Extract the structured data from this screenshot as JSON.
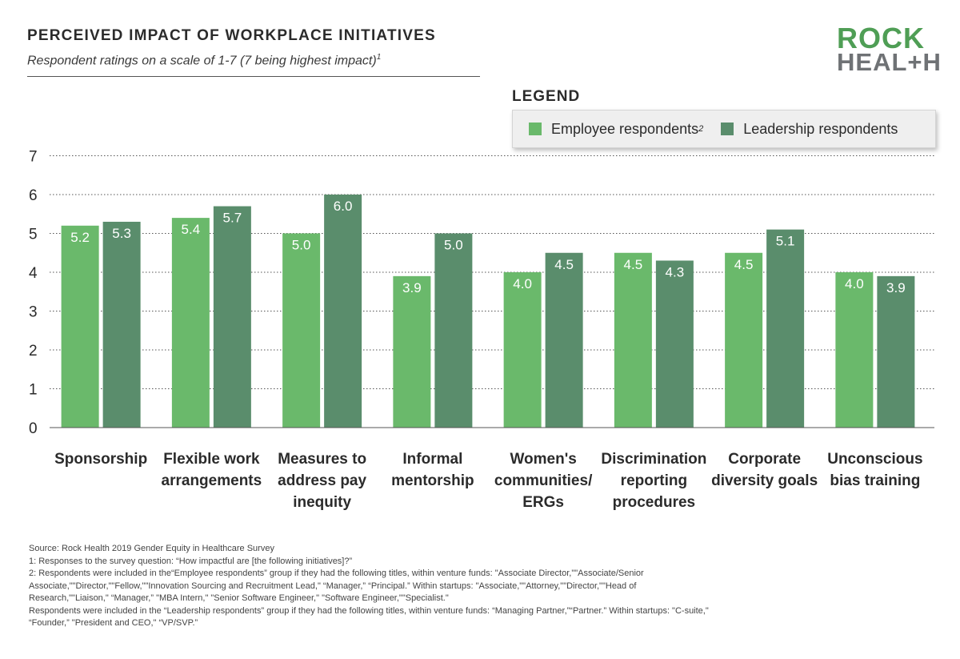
{
  "header": {
    "title": "PERCEIVED IMPACT OF WORKPLACE INITIATIVES",
    "subtitle": "Respondent ratings on a scale of 1-7 (7 being highest impact)",
    "subtitle_sup": "1"
  },
  "logo": {
    "line1": "ROCK",
    "line2": "HEAL+H"
  },
  "legend": {
    "title": "LEGEND",
    "employee_label": "Employee respondents",
    "employee_sup": "2",
    "leadership_label": "Leadership respondents"
  },
  "colors": {
    "employee": "#6ab96b",
    "leadership": "#5a8d6c"
  },
  "chart_data": {
    "type": "bar",
    "title": "PERCEIVED IMPACT OF WORKPLACE INITIATIVES",
    "subtitle": "Respondent ratings on a scale of 1-7 (7 being highest impact)",
    "categories": [
      [
        "Sponsorship"
      ],
      [
        "Flexible work",
        "arrangements"
      ],
      [
        "Measures to",
        "address pay",
        "inequity"
      ],
      [
        "Informal",
        "mentorship"
      ],
      [
        "Women's",
        "communities/",
        "ERGs"
      ],
      [
        "Discrimination",
        "reporting",
        "procedures"
      ],
      [
        "Corporate",
        "diversity goals"
      ],
      [
        "Unconscious",
        "bias training"
      ]
    ],
    "series": [
      {
        "name": "Employee respondents",
        "values": [
          5.2,
          5.4,
          5.0,
          3.9,
          4.0,
          4.5,
          4.5,
          4.0
        ]
      },
      {
        "name": "Leadership respondents",
        "values": [
          5.3,
          5.7,
          6.0,
          5.0,
          4.5,
          4.3,
          5.1,
          3.9
        ]
      }
    ],
    "value_labels": [
      [
        "5.2",
        "5.4",
        "5.0",
        "3.9",
        "4.0",
        "4.5",
        "4.5",
        "4.0"
      ],
      [
        "5.3",
        "5.7",
        "6.0",
        "5.0",
        "4.5",
        "4.3",
        "5.1",
        "3.9"
      ]
    ],
    "yticks": [
      "0",
      "1",
      "2",
      "3",
      "4",
      "5",
      "6",
      "7"
    ],
    "ylim": [
      0,
      7
    ],
    "grid": true,
    "legend_position": "top-right"
  },
  "footnotes": {
    "source": "Source: Rock Health 2019 Gender Equity in Healthcare Survey",
    "note1": "1: Responses to the survey question: “How impactful are [the following initiatives]?”",
    "note2_line1": "2: Respondents were included in the“Employee respondents” group if they had the following titles, within venture funds: \"Associate Director,\"\"Associate/Senior",
    "note2_line2": "Associate,\"\"Director,\"\"Fellow,\"\"Innovation Sourcing and Recruitment Lead,\" “Manager,” “Principal.” Within startups: \"Associate,\"\"Attorney,\"\"Director,\"\"Head of",
    "note2_line3": "Research,\"\"Liaison,\" “Manager,” \"MBA Intern,\" \"Senior Software Engineer,\" \"Software Engineer,\"\"Specialist.\"",
    "note3_line1": "Respondents were included in the “Leadership respondents” group if they had the following titles, within venture funds: “Managing Partner,”“Partner.” Within startups: \"C-suite,\"",
    "note3_line2": "“Founder,” \"President and CEO,\" “VP/SVP.”"
  }
}
